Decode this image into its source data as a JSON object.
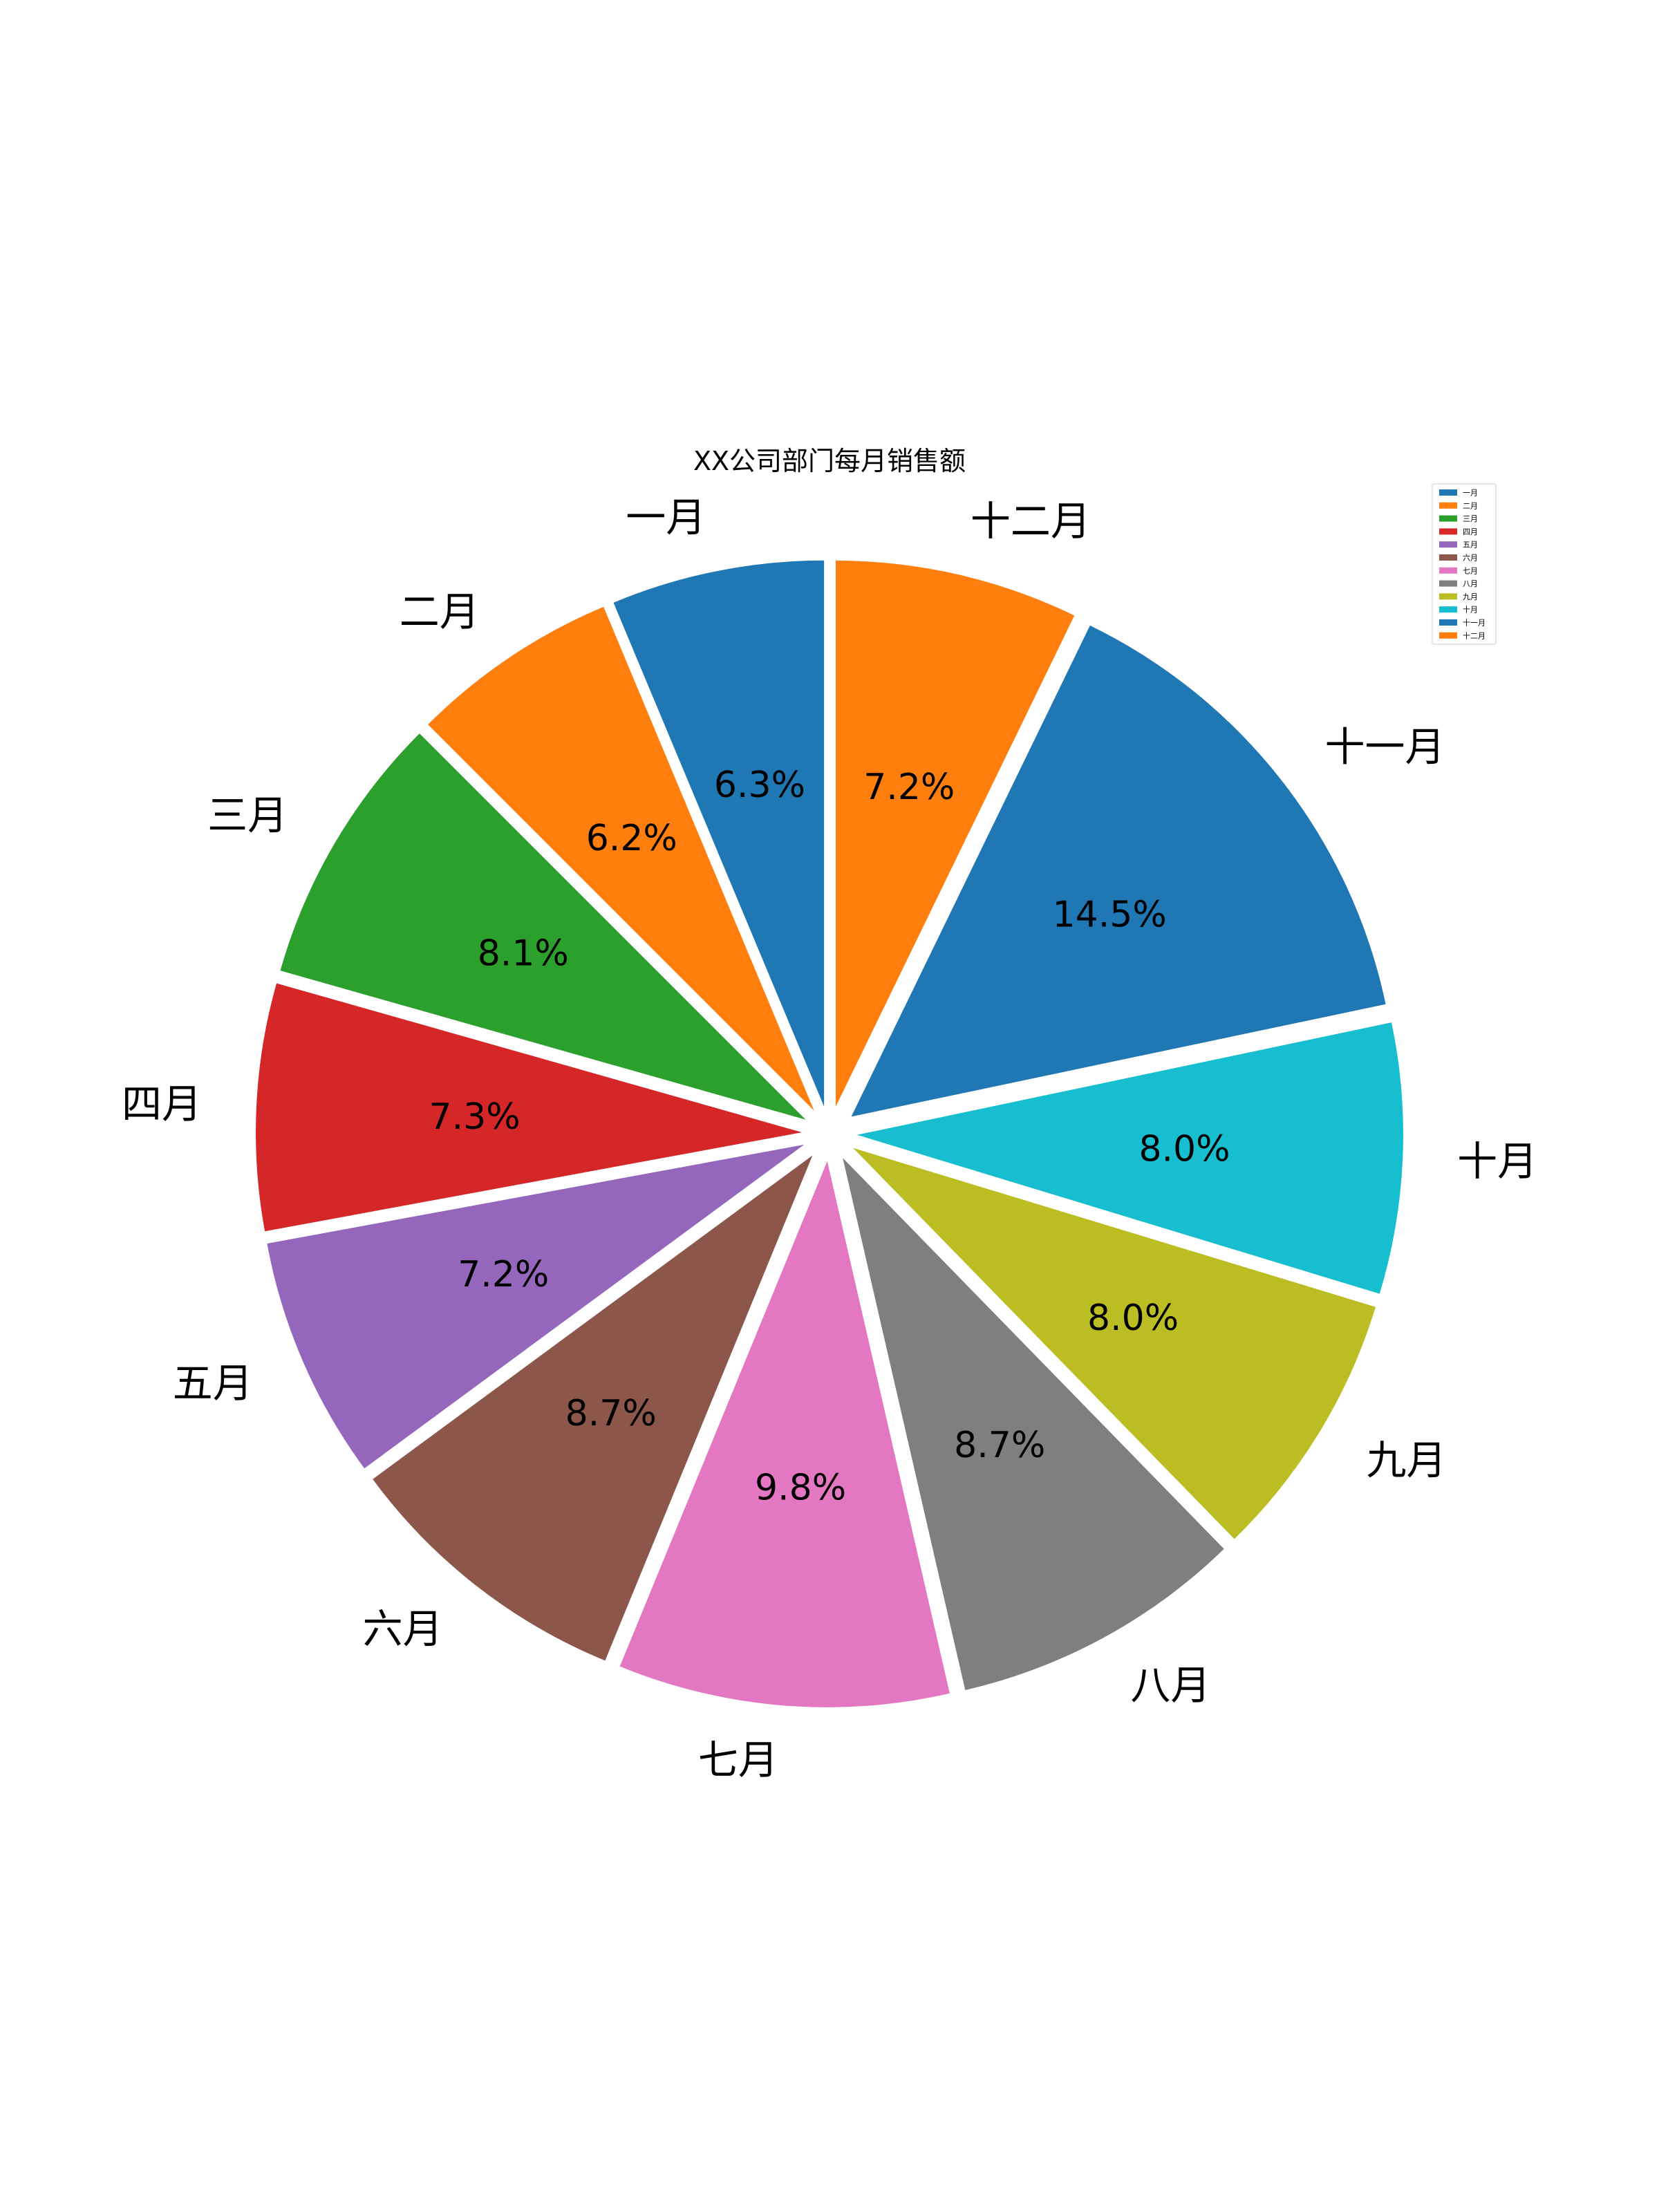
{
  "chart_data": {
    "type": "pie",
    "title": "XX公司部门每月销售额",
    "categories": [
      "一月",
      "二月",
      "三月",
      "四月",
      "五月",
      "六月",
      "七月",
      "八月",
      "九月",
      "十月",
      "十一月",
      "十二月"
    ],
    "values": [
      6.3,
      6.2,
      8.1,
      7.3,
      7.2,
      8.7,
      9.8,
      8.7,
      8.0,
      8.0,
      14.5,
      7.2
    ],
    "value_labels": [
      "6.3%",
      "6.2%",
      "8.1%",
      "7.3%",
      "7.2%",
      "8.7%",
      "9.8%",
      "8.7%",
      "8.0%",
      "8.0%",
      "14.5%",
      "7.2%"
    ],
    "colors": [
      "#1f77b4",
      "#ff7f0e",
      "#2ca02c",
      "#d62728",
      "#9467bd",
      "#8c564b",
      "#e377c2",
      "#7f7f7f",
      "#bcbd22",
      "#17becf",
      "#1f77b4",
      "#ff7f0e"
    ],
    "start_angle_deg": 90,
    "direction": "counterclockwise",
    "exploded": true,
    "legend": {
      "position": "top-right",
      "entries": [
        "一月",
        "二月",
        "三月",
        "四月",
        "五月",
        "六月",
        "七月",
        "八月",
        "九月",
        "十月",
        "十一月",
        "十二月"
      ]
    }
  }
}
